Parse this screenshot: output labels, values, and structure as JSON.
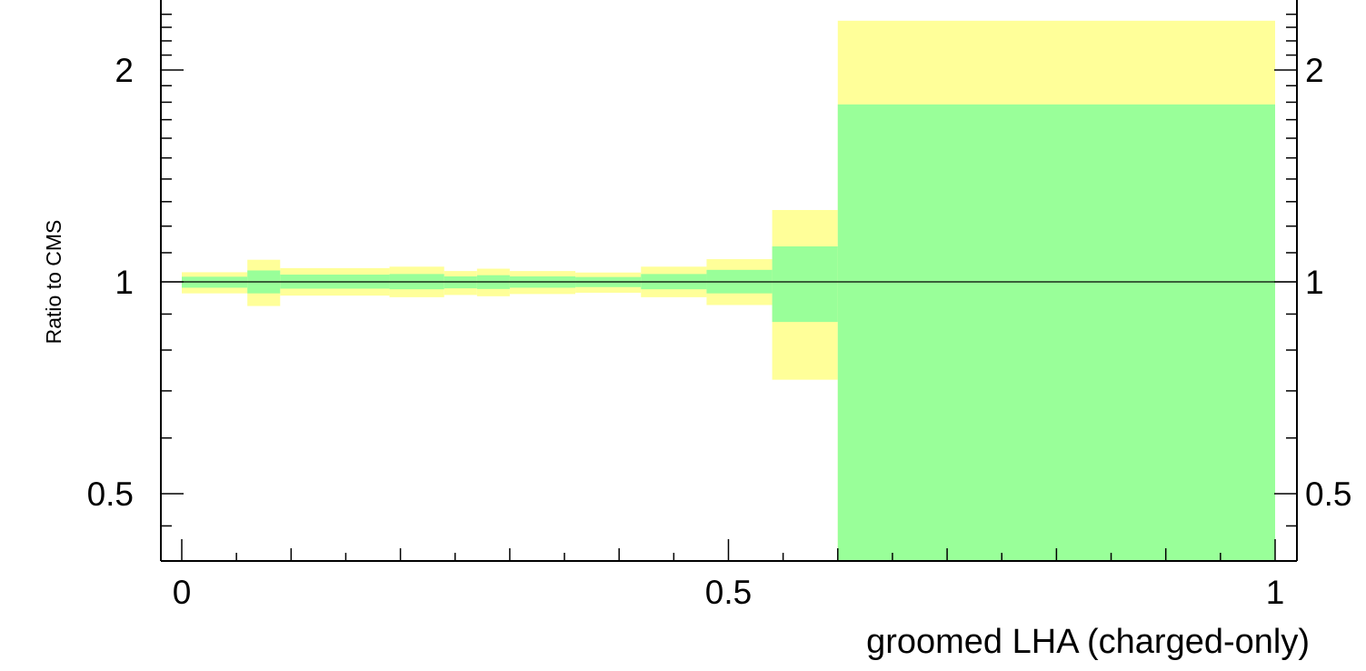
{
  "chart_data": {
    "type": "area",
    "xlabel": "groomed LHA (charged-only)",
    "ylabel": "Ratio to CMS",
    "xlim": [
      -0.02,
      1.02
    ],
    "ylim": [
      0.4,
      2.5
    ],
    "yscale": "log",
    "x_ticks": [
      0,
      0.5,
      1
    ],
    "x_tick_labels": [
      "0",
      "0.5",
      "1"
    ],
    "y_ticks": [
      0.5,
      1,
      2
    ],
    "y_tick_labels": [
      "0.5",
      "1",
      "2"
    ],
    "reference_line": 1,
    "bin_edges": [
      0,
      0.06,
      0.09,
      0.19,
      0.24,
      0.27,
      0.3,
      0.36,
      0.42,
      0.48,
      0.54,
      0.6,
      1.0
    ],
    "bands": [
      {
        "color": "#ffff99",
        "lower": [
          0.963,
          0.924,
          0.956,
          0.951,
          0.958,
          0.954,
          0.961,
          0.965,
          0.951,
          0.927,
          0.726,
          0.38
        ],
        "upper": [
          1.032,
          1.075,
          1.046,
          1.051,
          1.036,
          1.044,
          1.036,
          1.031,
          1.051,
          1.077,
          1.265,
          2.35
        ]
      },
      {
        "color": "#99ff99",
        "lower": [
          0.981,
          0.963,
          0.978,
          0.976,
          0.979,
          0.977,
          0.981,
          0.983,
          0.976,
          0.963,
          0.877,
          0.38
        ],
        "upper": [
          1.017,
          1.038,
          1.024,
          1.026,
          1.018,
          1.022,
          1.018,
          1.016,
          1.026,
          1.04,
          1.123,
          1.787
        ]
      }
    ],
    "colors": {
      "outer_band": "#ffff99",
      "inner_band": "#99ff99",
      "axis": "#000000"
    },
    "grid": false
  }
}
